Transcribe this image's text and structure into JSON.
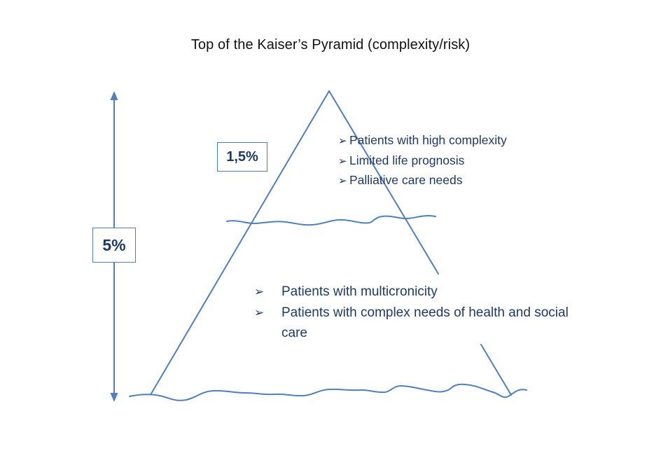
{
  "title": "Top of the Kaiser’s Pyramid (complexity/risk)",
  "colors": {
    "line": "#4e7fbf",
    "text_dark_blue": "#1f3a66",
    "title_text": "#111111"
  },
  "bullet_icon": "arrowhead-bullet-icon",
  "top_segment": {
    "percentage": "1,5%",
    "bullet_symbol": "➢",
    "bullets": [
      "Patients with high complexity",
      "Limited life prognosis",
      "Palliative care needs"
    ]
  },
  "total_segment": {
    "percentage": "5%"
  },
  "bottom_segment": {
    "bullet_symbol": "➢",
    "bullets": [
      "Patients with multicronicity",
      "Patients with complex needs of health and social care"
    ]
  }
}
